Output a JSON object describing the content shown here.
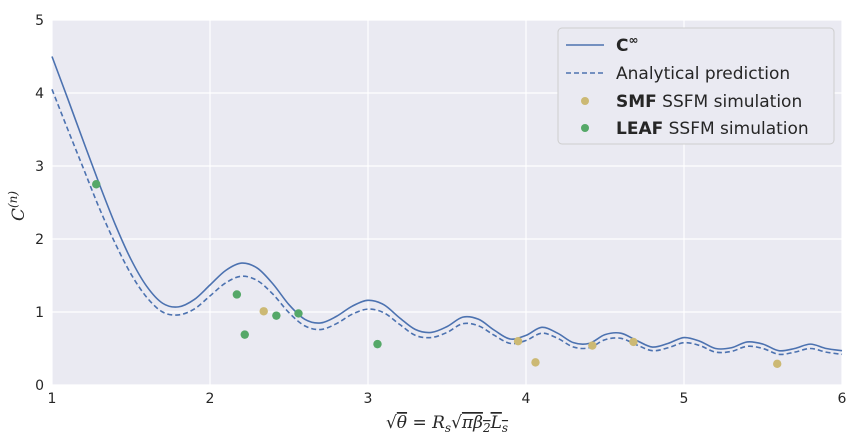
{
  "chart_data": {
    "type": "line",
    "title": "",
    "xlabel": "√θ = R_s √(π β₂ L_s)",
    "ylabel": "C^(n)",
    "xlim": [
      1,
      6
    ],
    "ylim": [
      0,
      5
    ],
    "xticks": [
      "1",
      "2",
      "3",
      "4",
      "5",
      "6"
    ],
    "yticks": [
      "0",
      "1",
      "2",
      "3",
      "4",
      "5"
    ],
    "grid": true,
    "legend_position": "top-right",
    "legend": [
      {
        "bold": "C",
        "suffix": "∞",
        "rest": "",
        "style": "solid-line"
      },
      {
        "bold": "",
        "suffix": "",
        "rest": "Analytical prediction",
        "style": "dashed-line"
      },
      {
        "bold": "SMF",
        "suffix": "",
        "rest": " SSFM simulation",
        "style": "marker-tan"
      },
      {
        "bold": "LEAF",
        "suffix": "",
        "rest": " SSFM simulation",
        "style": "marker-green"
      }
    ],
    "colors": {
      "background": "#eaeaf2",
      "grid": "#ffffff",
      "line": "#4c72b0",
      "smf": "#ccb974",
      "leaf": "#55a868"
    },
    "series": [
      {
        "id": "c-infinity",
        "line": "solid",
        "points": [
          [
            1.0,
            4.5
          ],
          [
            1.1,
            3.92
          ],
          [
            1.2,
            3.33
          ],
          [
            1.3,
            2.75
          ],
          [
            1.4,
            2.2
          ],
          [
            1.5,
            1.72
          ],
          [
            1.6,
            1.35
          ],
          [
            1.7,
            1.12
          ],
          [
            1.8,
            1.07
          ],
          [
            1.9,
            1.17
          ],
          [
            2.0,
            1.37
          ],
          [
            2.1,
            1.57
          ],
          [
            2.2,
            1.67
          ],
          [
            2.3,
            1.6
          ],
          [
            2.4,
            1.38
          ],
          [
            2.5,
            1.1
          ],
          [
            2.6,
            0.9
          ],
          [
            2.7,
            0.85
          ],
          [
            2.8,
            0.94
          ],
          [
            2.9,
            1.08
          ],
          [
            3.0,
            1.16
          ],
          [
            3.1,
            1.1
          ],
          [
            3.2,
            0.92
          ],
          [
            3.3,
            0.76
          ],
          [
            3.4,
            0.72
          ],
          [
            3.5,
            0.8
          ],
          [
            3.6,
            0.93
          ],
          [
            3.7,
            0.9
          ],
          [
            3.8,
            0.75
          ],
          [
            3.9,
            0.63
          ],
          [
            4.0,
            0.68
          ],
          [
            4.1,
            0.79
          ],
          [
            4.2,
            0.71
          ],
          [
            4.3,
            0.58
          ],
          [
            4.4,
            0.57
          ],
          [
            4.5,
            0.69
          ],
          [
            4.6,
            0.71
          ],
          [
            4.7,
            0.61
          ],
          [
            4.8,
            0.52
          ],
          [
            4.9,
            0.57
          ],
          [
            5.0,
            0.65
          ],
          [
            5.1,
            0.6
          ],
          [
            5.2,
            0.5
          ],
          [
            5.3,
            0.51
          ],
          [
            5.4,
            0.59
          ],
          [
            5.5,
            0.56
          ],
          [
            5.6,
            0.47
          ],
          [
            5.7,
            0.5
          ],
          [
            5.8,
            0.56
          ],
          [
            5.9,
            0.5
          ],
          [
            6.0,
            0.47
          ]
        ]
      },
      {
        "id": "analytical",
        "line": "dashed",
        "points": [
          [
            1.0,
            4.05
          ],
          [
            1.1,
            3.5
          ],
          [
            1.2,
            2.96
          ],
          [
            1.3,
            2.42
          ],
          [
            1.4,
            1.94
          ],
          [
            1.5,
            1.52
          ],
          [
            1.6,
            1.2
          ],
          [
            1.7,
            1.0
          ],
          [
            1.8,
            0.96
          ],
          [
            1.9,
            1.04
          ],
          [
            2.0,
            1.22
          ],
          [
            2.1,
            1.4
          ],
          [
            2.2,
            1.49
          ],
          [
            2.3,
            1.43
          ],
          [
            2.4,
            1.24
          ],
          [
            2.5,
            0.99
          ],
          [
            2.6,
            0.81
          ],
          [
            2.7,
            0.76
          ],
          [
            2.8,
            0.84
          ],
          [
            2.9,
            0.97
          ],
          [
            3.0,
            1.04
          ],
          [
            3.1,
            0.99
          ],
          [
            3.2,
            0.83
          ],
          [
            3.3,
            0.68
          ],
          [
            3.4,
            0.65
          ],
          [
            3.5,
            0.72
          ],
          [
            3.6,
            0.84
          ],
          [
            3.7,
            0.81
          ],
          [
            3.8,
            0.68
          ],
          [
            3.9,
            0.57
          ],
          [
            4.0,
            0.61
          ],
          [
            4.1,
            0.71
          ],
          [
            4.2,
            0.64
          ],
          [
            4.3,
            0.52
          ],
          [
            4.4,
            0.51
          ],
          [
            4.5,
            0.62
          ],
          [
            4.6,
            0.64
          ],
          [
            4.7,
            0.55
          ],
          [
            4.8,
            0.47
          ],
          [
            4.9,
            0.51
          ],
          [
            5.0,
            0.58
          ],
          [
            5.1,
            0.54
          ],
          [
            5.2,
            0.45
          ],
          [
            5.3,
            0.46
          ],
          [
            5.4,
            0.53
          ],
          [
            5.5,
            0.5
          ],
          [
            5.6,
            0.42
          ],
          [
            5.7,
            0.45
          ],
          [
            5.8,
            0.5
          ],
          [
            5.9,
            0.45
          ],
          [
            6.0,
            0.42
          ]
        ]
      }
    ],
    "scatter": [
      {
        "id": "smf",
        "points": [
          [
            2.34,
            1.01
          ],
          [
            3.95,
            0.6
          ],
          [
            4.06,
            0.31
          ],
          [
            4.42,
            0.54
          ],
          [
            4.68,
            0.59
          ],
          [
            5.59,
            0.29
          ]
        ]
      },
      {
        "id": "leaf",
        "points": [
          [
            1.28,
            2.75
          ],
          [
            2.17,
            1.24
          ],
          [
            2.22,
            0.69
          ],
          [
            2.42,
            0.95
          ],
          [
            2.56,
            0.98
          ],
          [
            3.06,
            0.56
          ]
        ]
      }
    ]
  }
}
